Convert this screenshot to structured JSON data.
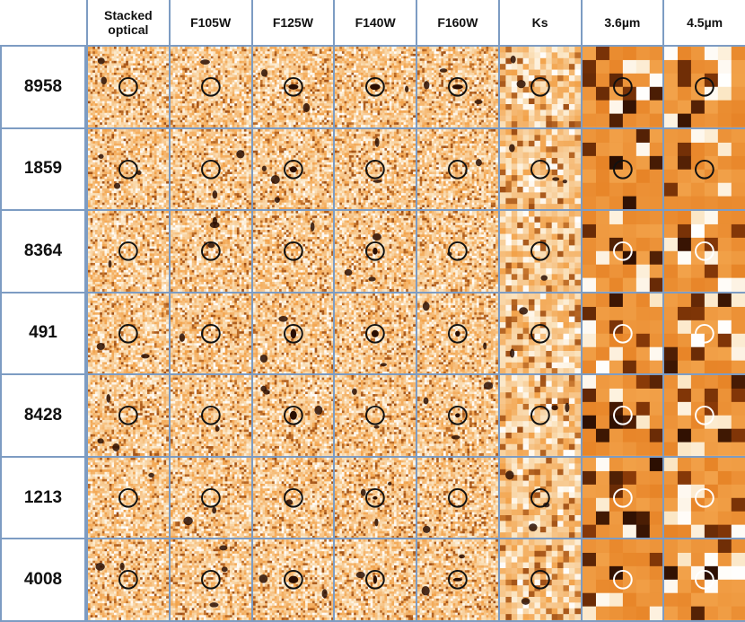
{
  "columns": [
    "Stacked\noptical",
    "F105W",
    "F125W",
    "F140W",
    "F160W",
    "Ks",
    "3.6µm",
    "4.5µm"
  ],
  "objects": [
    "8958",
    "1859",
    "8364",
    "491",
    "8428",
    "1213",
    "4008"
  ],
  "colors": {
    "background": "#ffffff",
    "border": "#7d9cc3",
    "noise_base": "#f2a24a",
    "noise_light": "#fbe6c4",
    "noise_dark": "#8a3a08",
    "source_dark": "#2a0e02"
  }
}
